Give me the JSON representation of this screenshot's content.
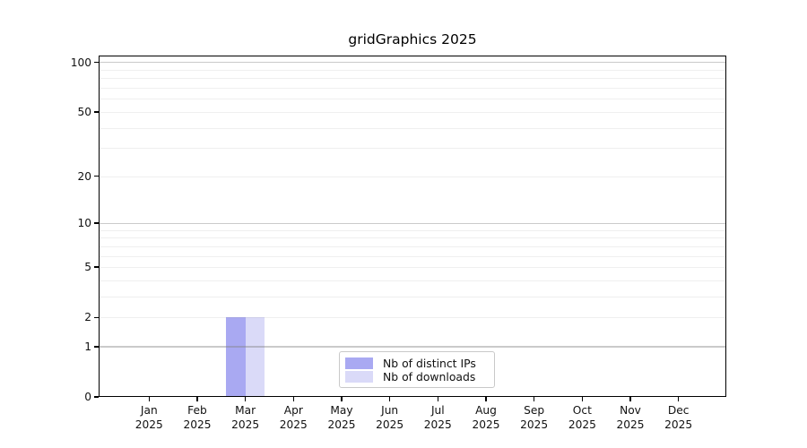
{
  "title": "gridGraphics 2025",
  "colors": {
    "background": "#ffffff",
    "axis": "#000000",
    "major_gridline": "#c8c8c8",
    "minor_gridline": "#ececec",
    "bar_distinct_ips": "#a9a9f2",
    "bar_downloads": "#dadaf8",
    "legend_border": "#c9c9c9",
    "text": "#000000"
  },
  "legend": {
    "position": "lower center",
    "items": [
      {
        "label": "Nb of distinct IPs",
        "color": "#a9a9f2"
      },
      {
        "label": "Nb of downloads",
        "color": "#dadaf8"
      }
    ]
  },
  "chart_data": {
    "type": "bar",
    "title": "gridGraphics 2025",
    "xlabel": "",
    "ylabel": "",
    "x_categories": [
      {
        "month": "Jan",
        "year": "2025"
      },
      {
        "month": "Feb",
        "year": "2025"
      },
      {
        "month": "Mar",
        "year": "2025"
      },
      {
        "month": "Apr",
        "year": "2025"
      },
      {
        "month": "May",
        "year": "2025"
      },
      {
        "month": "Jun",
        "year": "2025"
      },
      {
        "month": "Jul",
        "year": "2025"
      },
      {
        "month": "Aug",
        "year": "2025"
      },
      {
        "month": "Sep",
        "year": "2025"
      },
      {
        "month": "Oct",
        "year": "2025"
      },
      {
        "month": "Nov",
        "year": "2025"
      },
      {
        "month": "Dec",
        "year": "2025"
      }
    ],
    "series": [
      {
        "name": "Nb of distinct IPs",
        "color": "#a9a9f2",
        "values": [
          0,
          0,
          2,
          0,
          0,
          0,
          0,
          0,
          0,
          0,
          0,
          0
        ]
      },
      {
        "name": "Nb of downloads",
        "color": "#dadaf8",
        "values": [
          0,
          0,
          2,
          0,
          0,
          0,
          0,
          0,
          0,
          0,
          0,
          0
        ]
      }
    ],
    "y_scale": "log10(1+x)",
    "ylim": [
      0,
      110
    ],
    "y_ticks": [
      0,
      1,
      2,
      5,
      10,
      20,
      50,
      100
    ],
    "y_major_gridlines": [
      1,
      10,
      100
    ],
    "y_minor_gridlines": [
      2,
      3,
      4,
      5,
      6,
      7,
      8,
      9,
      20,
      30,
      40,
      50,
      60,
      70,
      80,
      90
    ],
    "grid": true,
    "legend_position": "lower center"
  }
}
